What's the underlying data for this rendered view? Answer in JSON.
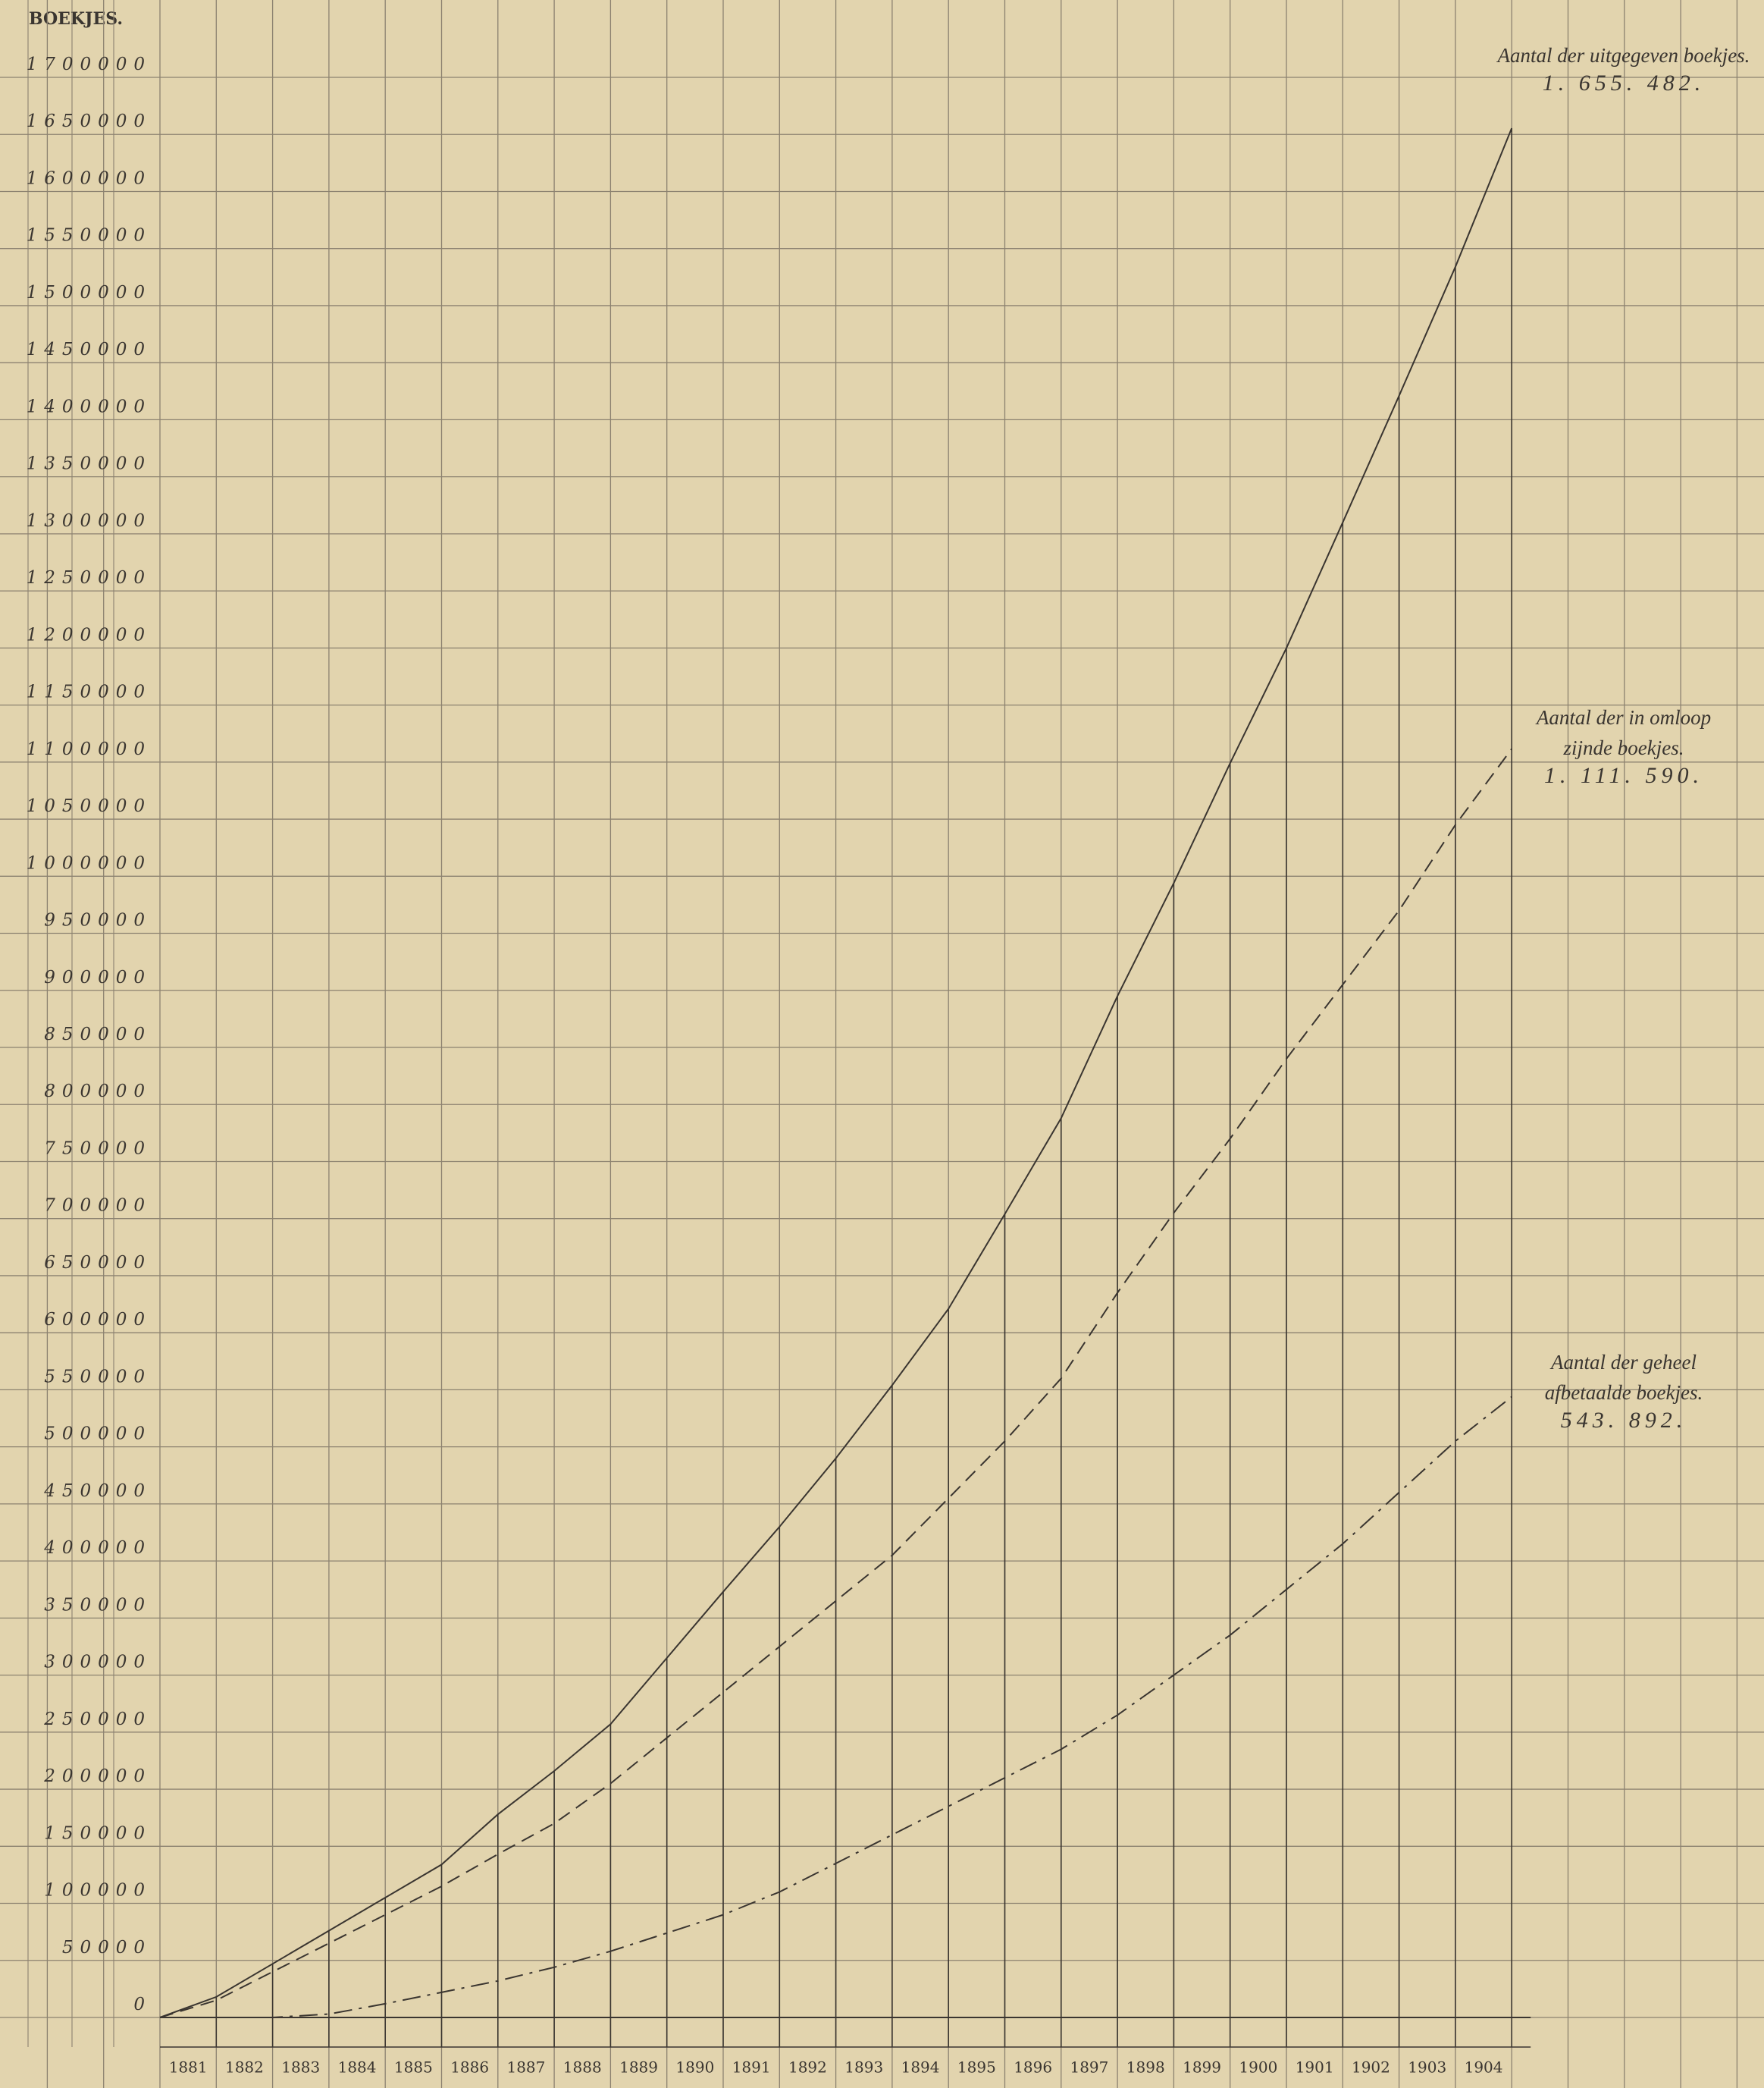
{
  "chart_data": {
    "type": "line",
    "y_axis_title": "BOEKJES.",
    "categories": [
      null,
      "1881",
      "1882",
      "1883",
      "1884",
      "1885",
      "1886",
      "1887",
      "1888",
      "1889",
      "1890",
      "1891",
      "1892",
      "1893",
      "1894",
      "1895",
      "1896",
      "1897",
      "1898",
      "1899",
      "1900",
      "1901",
      "1902",
      "1903",
      "1904"
    ],
    "ylim": [
      0,
      1700000
    ],
    "yticks": [
      0,
      50000,
      100000,
      150000,
      200000,
      250000,
      300000,
      350000,
      400000,
      450000,
      500000,
      550000,
      600000,
      650000,
      700000,
      750000,
      800000,
      850000,
      900000,
      950000,
      1000000,
      1050000,
      1100000,
      1150000,
      1200000,
      1250000,
      1300000,
      1350000,
      1400000,
      1450000,
      1500000,
      1550000,
      1600000,
      1650000,
      1700000
    ],
    "grid": true,
    "series": [
      {
        "name": "Aantal der uitgegeven boekjes.",
        "color": "#3a3530",
        "style": "solid",
        "values": [
          0,
          18000,
          47000,
          76000,
          105000,
          134000,
          178000,
          216000,
          257000,
          315000,
          373000,
          430000,
          490000,
          554000,
          621000,
          704000,
          788000,
          895000,
          994000,
          1099000,
          1200000,
          1310000,
          1421000,
          1534000,
          1655482
        ],
        "value_labels": [
          null,
          null,
          null,
          null,
          null,
          null,
          null,
          null,
          null,
          null,
          null,
          null,
          null,
          null,
          null,
          null,
          null,
          null,
          null,
          null,
          null,
          null,
          null,
          null,
          "1. 655. 482."
        ]
      },
      {
        "name": "Aantal der in omloop zijnde boekjes.",
        "color": "#3a3530",
        "style": "dashed",
        "values": [
          0,
          15000,
          40000,
          65000,
          90000,
          115000,
          143000,
          170000,
          205000,
          245000,
          285000,
          325000,
          365000,
          405000,
          455000,
          505000,
          560000,
          635000,
          705000,
          770000,
          840000,
          905000,
          970000,
          1045000,
          1111590
        ],
        "value_labels": [
          null,
          null,
          null,
          null,
          null,
          null,
          null,
          null,
          null,
          null,
          null,
          null,
          null,
          null,
          null,
          null,
          null,
          null,
          null,
          null,
          null,
          null,
          null,
          null,
          "1. 111. 590."
        ]
      },
      {
        "name": "Aantal der geheel afbetaalde boekjes.",
        "color": "#3a3530",
        "style": "dashdot",
        "values": [
          0,
          0,
          0,
          3000,
          12000,
          22000,
          32000,
          44000,
          58000,
          74000,
          90000,
          110000,
          135000,
          160000,
          185000,
          210000,
          235000,
          265000,
          300000,
          335000,
          375000,
          415000,
          460000,
          505000,
          543892
        ],
        "value_labels": [
          null,
          null,
          null,
          null,
          null,
          null,
          null,
          null,
          null,
          null,
          null,
          null,
          null,
          null,
          null,
          null,
          null,
          null,
          null,
          null,
          null,
          null,
          null,
          null,
          "543. 892."
        ]
      }
    ]
  }
}
